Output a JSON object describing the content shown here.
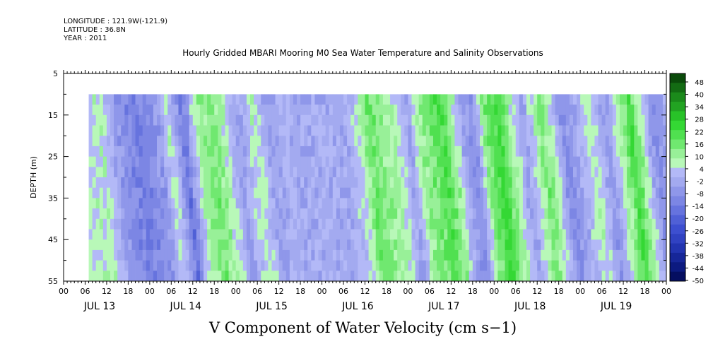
{
  "meta": {
    "longitude": "LONGITUDE : 121.9W(-121.9)",
    "latitude": "LATITUDE : 36.8N",
    "year": "YEAR : 2011"
  },
  "chart_data": {
    "type": "heatmap",
    "title": "Hourly Gridded MBARI Mooring M0 Sea Water Temperature and Salinity Observations",
    "xlabel": "V Component of Water Velocity (cm s−1)",
    "ylabel": "DEPTH (m)",
    "ylim": [
      5,
      55
    ],
    "y_reversed": true,
    "y_ticks": [
      5,
      15,
      25,
      35,
      45,
      55
    ],
    "hour_ticks": [
      "00",
      "06",
      "12",
      "18",
      "00",
      "06",
      "12",
      "18",
      "00",
      "06",
      "12",
      "18",
      "00",
      "06",
      "12",
      "18",
      "00",
      "06",
      "12",
      "18",
      "00",
      "06",
      "12",
      "18",
      "00",
      "06",
      "12",
      "18",
      "00"
    ],
    "day_labels": [
      "JUL 13",
      "JUL 14",
      "JUL 15",
      "JUL 16",
      "JUL 17",
      "JUL 18",
      "JUL 19"
    ],
    "data_extent": {
      "start_hour": 7,
      "end_hour": 168,
      "top_depth": 10,
      "bottom_depth": 55
    },
    "colorbar": {
      "labels": [
        "48",
        "40",
        "34",
        "28",
        "22",
        "16",
        "10",
        "4",
        "-2",
        "-8",
        "-14",
        "-20",
        "-26",
        "-32",
        "-38",
        "-44",
        "-50"
      ],
      "colors": [
        "#0a4a0a",
        "#136b13",
        "#1b8a1b",
        "#22a322",
        "#28c228",
        "#34d834",
        "#50e050",
        "#70e870",
        "#98f098",
        "#b8f8b8",
        "#b3b9f7",
        "#a3aaf0",
        "#8f97ea",
        "#7c86e4",
        "#6673de",
        "#5060d6",
        "#3d4fd0",
        "#3042c2",
        "#2234b0",
        "#162698",
        "#0c1a80",
        "#050e60"
      ]
    },
    "velocity_profile": [
      {
        "hour": 7,
        "v": 4
      },
      {
        "hour": 9,
        "v": 6
      },
      {
        "hour": 13,
        "v": -6
      },
      {
        "hour": 19,
        "v": -14
      },
      {
        "hour": 25,
        "v": -8
      },
      {
        "hour": 28,
        "v": 6
      },
      {
        "hour": 32,
        "v": -16
      },
      {
        "hour": 36,
        "v": 8
      },
      {
        "hour": 40,
        "v": 14
      },
      {
        "hour": 44,
        "v": 4
      },
      {
        "hour": 47,
        "v": -6
      },
      {
        "hour": 52,
        "v": 6
      },
      {
        "hour": 56,
        "v": -6
      },
      {
        "hour": 60,
        "v": 0
      },
      {
        "hour": 64,
        "v": -4
      },
      {
        "hour": 70,
        "v": -2
      },
      {
        "hour": 76,
        "v": -4
      },
      {
        "hour": 80,
        "v": 2
      },
      {
        "hour": 84,
        "v": 16
      },
      {
        "hour": 88,
        "v": 10
      },
      {
        "hour": 92,
        "v": 4
      },
      {
        "hour": 95,
        "v": -6
      },
      {
        "hour": 98,
        "v": 10
      },
      {
        "hour": 101,
        "v": 14
      },
      {
        "hour": 104,
        "v": 20
      },
      {
        "hour": 107,
        "v": 10
      },
      {
        "hour": 110,
        "v": -6
      },
      {
        "hour": 113,
        "v": -10
      },
      {
        "hour": 116,
        "v": 12
      },
      {
        "hour": 120,
        "v": 22
      },
      {
        "hour": 124,
        "v": 6
      },
      {
        "hour": 127,
        "v": -6
      },
      {
        "hour": 132,
        "v": 14
      },
      {
        "hour": 135,
        "v": 4
      },
      {
        "hour": 138,
        "v": -10
      },
      {
        "hour": 141,
        "v": -4
      },
      {
        "hour": 146,
        "v": 6
      },
      {
        "hour": 150,
        "v": -8
      },
      {
        "hour": 154,
        "v": 8
      },
      {
        "hour": 157,
        "v": 20
      },
      {
        "hour": 160,
        "v": 6
      },
      {
        "hour": 163,
        "v": -10
      },
      {
        "hour": 166,
        "v": -6
      },
      {
        "hour": 168,
        "v": 6
      }
    ]
  }
}
